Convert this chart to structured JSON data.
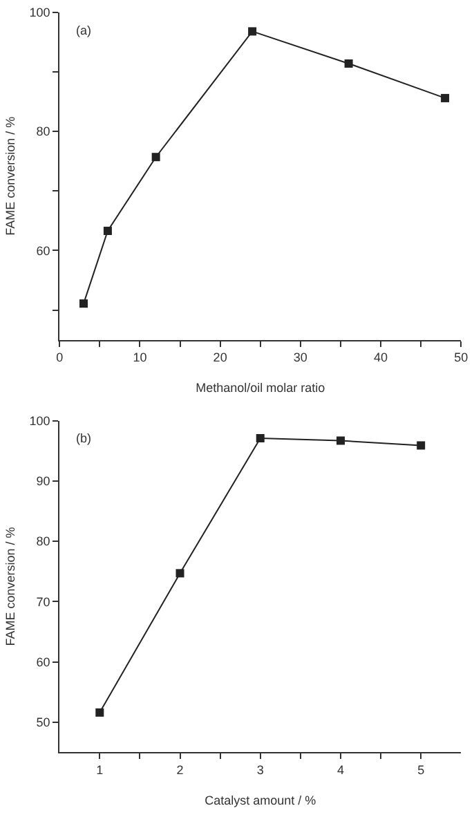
{
  "chart_data": [
    {
      "type": "line",
      "xlabel": "Methanol/oil molar ratio",
      "ylabel": "FAME conversion / %",
      "annotations": [
        "(a)"
      ],
      "marker": "square",
      "line_style": "solid",
      "series": [
        {
          "color": "#222222",
          "x": [
            3,
            6,
            12,
            24,
            36,
            48
          ],
          "values": [
            51.1,
            63.3,
            75.7,
            96.8,
            91.4,
            85.6
          ]
        }
      ],
      "xlim": [
        0,
        50
      ],
      "xticks": [
        0,
        {
          "value": 5,
          "label": null
        },
        10,
        {
          "value": 15,
          "label": null
        },
        20,
        {
          "value": 25,
          "label": null
        },
        30,
        {
          "value": 35,
          "label": null
        },
        40,
        {
          "value": 45,
          "label": null
        },
        50
      ],
      "ylim": [
        45,
        100
      ],
      "yticks": [
        {
          "value": 50,
          "label": null
        },
        60,
        {
          "value": 70,
          "label": null
        },
        80,
        {
          "value": 90,
          "label": null
        },
        100
      ]
    },
    {
      "type": "line",
      "xlabel": "Catalyst amount / %",
      "ylabel": "FAME conversion / %",
      "annotations": [
        "(b)"
      ],
      "marker": "square",
      "line_style": "solid",
      "series": [
        {
          "color": "#222222",
          "x": [
            1,
            2,
            3,
            4,
            5
          ],
          "values": [
            51.6,
            74.7,
            97.1,
            96.7,
            95.9
          ]
        }
      ],
      "xlim": [
        0.5,
        5.5
      ],
      "xticks": [
        1,
        {
          "value": 1.5,
          "label": null
        },
        2,
        {
          "value": 2.5,
          "label": null
        },
        3,
        {
          "value": 3.5,
          "label": null
        },
        4,
        {
          "value": 4.5,
          "label": null
        },
        5
      ],
      "ylim": [
        45,
        100
      ],
      "yticks": [
        50,
        60,
        70,
        80,
        90,
        100
      ]
    }
  ]
}
